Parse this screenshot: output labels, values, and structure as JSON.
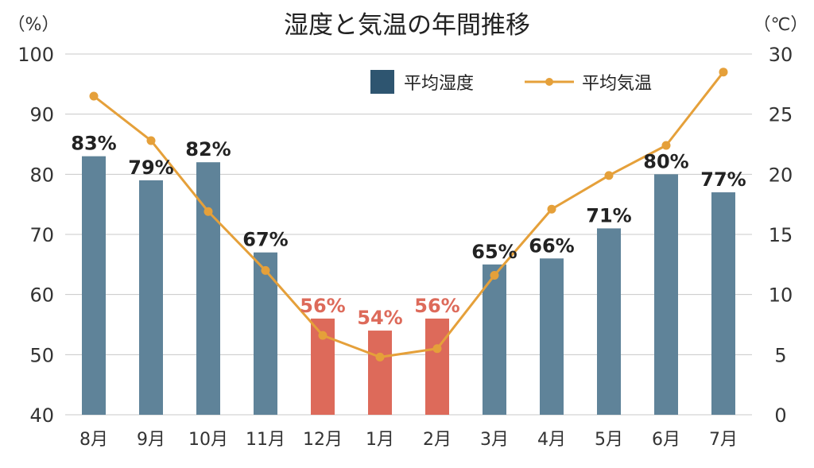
{
  "chart_data": {
    "type": "bar",
    "title": "湿度と気温の年間推移",
    "categories": [
      "8月",
      "9月",
      "10月",
      "11月",
      "12月",
      "1月",
      "2月",
      "3月",
      "4月",
      "5月",
      "6月",
      "7月"
    ],
    "left_axis": {
      "unit": "（%）",
      "range": [
        40,
        100
      ],
      "ticks": [
        40,
        50,
        60,
        70,
        80,
        90,
        100
      ]
    },
    "right_axis": {
      "unit": "（℃）",
      "range": [
        0,
        30
      ],
      "ticks": [
        0,
        5,
        10,
        15,
        20,
        25,
        30
      ]
    },
    "grid": true,
    "legend_position": "top-right",
    "series": [
      {
        "name": "平均湿度",
        "kind": "bar",
        "axis": "left",
        "values": [
          83,
          79,
          82,
          67,
          56,
          54,
          56,
          65,
          66,
          71,
          80,
          77
        ],
        "labels": [
          "83%",
          "79%",
          "82%",
          "67%",
          "56%",
          "54%",
          "56%",
          "65%",
          "66%",
          "71%",
          "80%",
          "77%"
        ],
        "color": "#5f8399",
        "highlight_color": "#dd6a5a",
        "highlight_indices": [
          4,
          5,
          6
        ]
      },
      {
        "name": "平均気温",
        "kind": "line",
        "axis": "right",
        "values": [
          26.5,
          22.8,
          16.9,
          12.0,
          6.6,
          4.8,
          5.5,
          11.6,
          17.1,
          19.9,
          22.4,
          28.5
        ],
        "color": "#e5a03a"
      }
    ]
  }
}
